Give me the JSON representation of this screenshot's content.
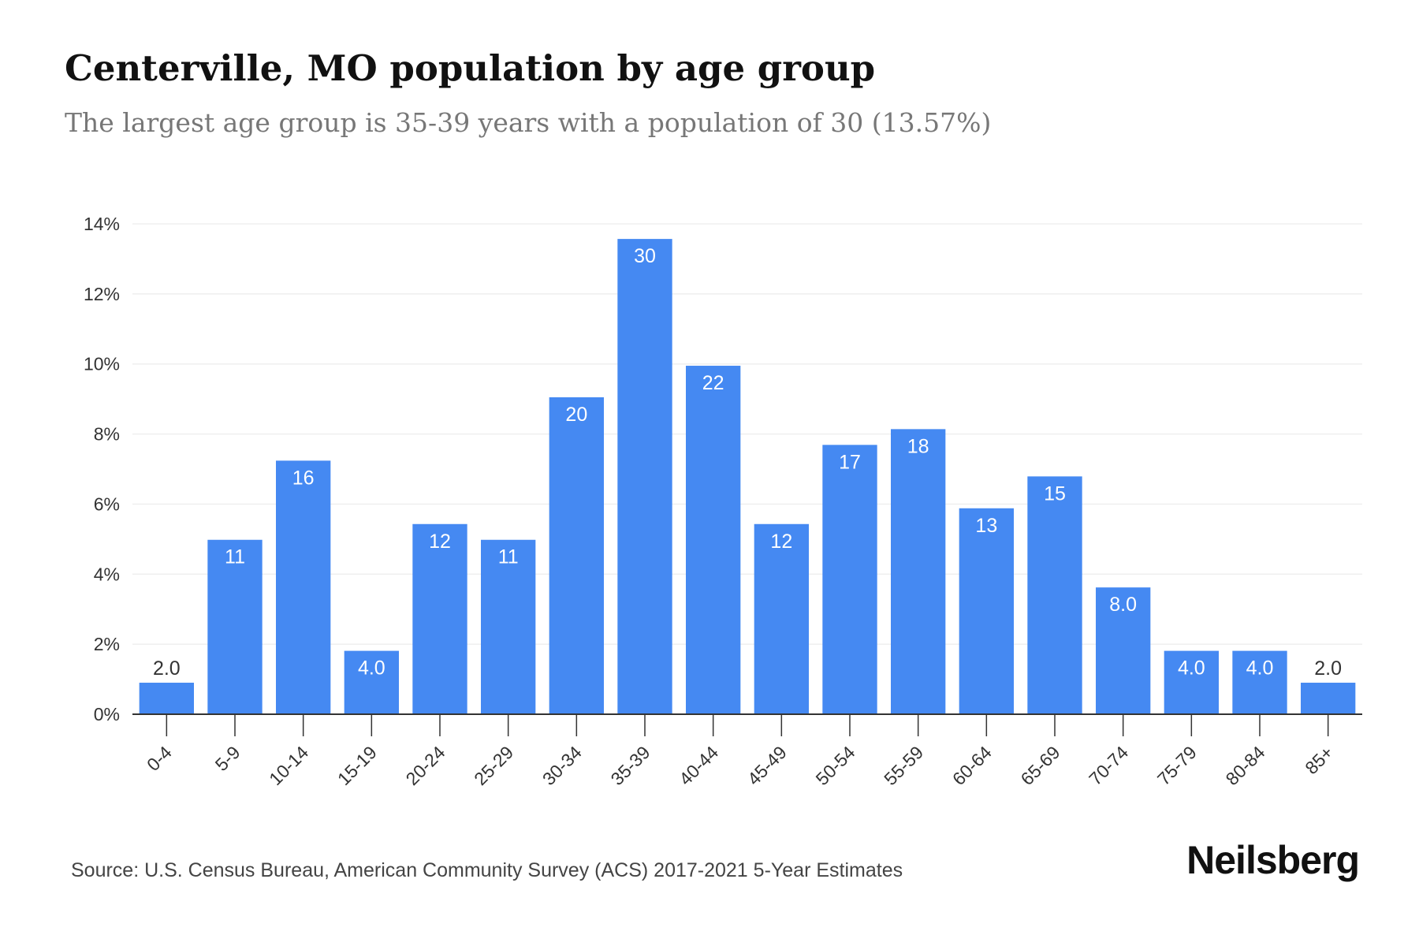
{
  "header": {
    "title": "Centerville, MO population by age group",
    "subtitle": "The largest age group is 35-39 years with a population of 30 (13.57%)"
  },
  "footer": {
    "source": "Source: U.S. Census Bureau, American Community Survey (ACS) 2017-2021 5-Year Estimates",
    "brand": "Neilsberg"
  },
  "colors": {
    "bar": "#4589f2",
    "grid": "#ececec",
    "axis": "#333333",
    "label_inside": "#ffffff",
    "label_outside": "#333333"
  },
  "chart_data": {
    "type": "bar",
    "title": "Centerville, MO population by age group",
    "subtitle": "The largest age group is 35-39 years with a population of 30 (13.57%)",
    "xlabel": "",
    "ylabel": "",
    "categories": [
      "0-4",
      "5-9",
      "10-14",
      "15-19",
      "20-24",
      "25-29",
      "30-34",
      "35-39",
      "40-44",
      "45-49",
      "50-54",
      "55-59",
      "60-64",
      "65-69",
      "70-74",
      "75-79",
      "80-84",
      "85+"
    ],
    "series": [
      {
        "values": [
          0.9,
          4.98,
          7.24,
          1.81,
          5.43,
          4.98,
          9.05,
          13.57,
          9.95,
          5.43,
          7.69,
          8.14,
          5.88,
          6.79,
          3.62,
          1.81,
          1.81,
          0.9
        ],
        "data_labels": [
          "2.0",
          "11",
          "16",
          "4.0",
          "12",
          "11",
          "20",
          "30",
          "22",
          "12",
          "17",
          "18",
          "13",
          "15",
          "8.0",
          "4.0",
          "4.0",
          "2.0"
        ]
      }
    ],
    "ylim": [
      0,
      14
    ],
    "yticks": [
      0,
      2,
      4,
      6,
      8,
      10,
      12,
      14
    ],
    "ytick_labels": [
      "0%",
      "2%",
      "4%",
      "6%",
      "8%",
      "10%",
      "12%",
      "14%"
    ],
    "grid": true,
    "legend": "none"
  }
}
